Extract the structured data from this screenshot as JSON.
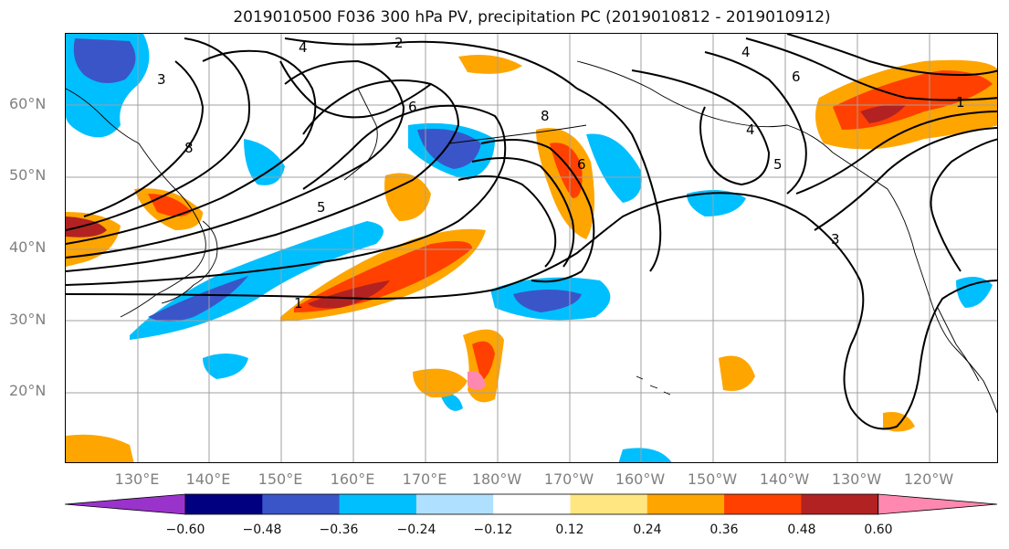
{
  "title": "2019010500 F036 300 hPa PV, precipitation PC (2019010812 - 2019010912)",
  "lat_labels": [
    "60°N",
    "50°N",
    "40°N",
    "30°N",
    "20°N"
  ],
  "lon_labels": [
    "130°E",
    "140°E",
    "150°E",
    "160°E",
    "170°E",
    "180°W",
    "170°W",
    "160°W",
    "150°W",
    "140°W",
    "130°W",
    "120°W"
  ],
  "contour_labels": [
    "4",
    "2",
    "3",
    "6",
    "8",
    "5",
    "6",
    "8",
    "5",
    "4",
    "1",
    "3",
    "6",
    "4",
    "1"
  ],
  "colorbar": {
    "ticks": [
      "−0.60",
      "−0.48",
      "−0.36",
      "−0.24",
      "−0.12",
      "0.12",
      "0.24",
      "0.36",
      "0.48",
      "0.60"
    ],
    "colors": [
      "#9a33cc",
      "#000080",
      "#3a55c8",
      "#00bfff",
      "#b0e0ff",
      "#ffffff",
      "#ffe680",
      "#ffa500",
      "#ff4000",
      "#b22222",
      "#ff88b0"
    ]
  },
  "colors": {
    "contour": "#000000",
    "grid": "#a0a0a0",
    "axis_text": "#808080"
  }
}
